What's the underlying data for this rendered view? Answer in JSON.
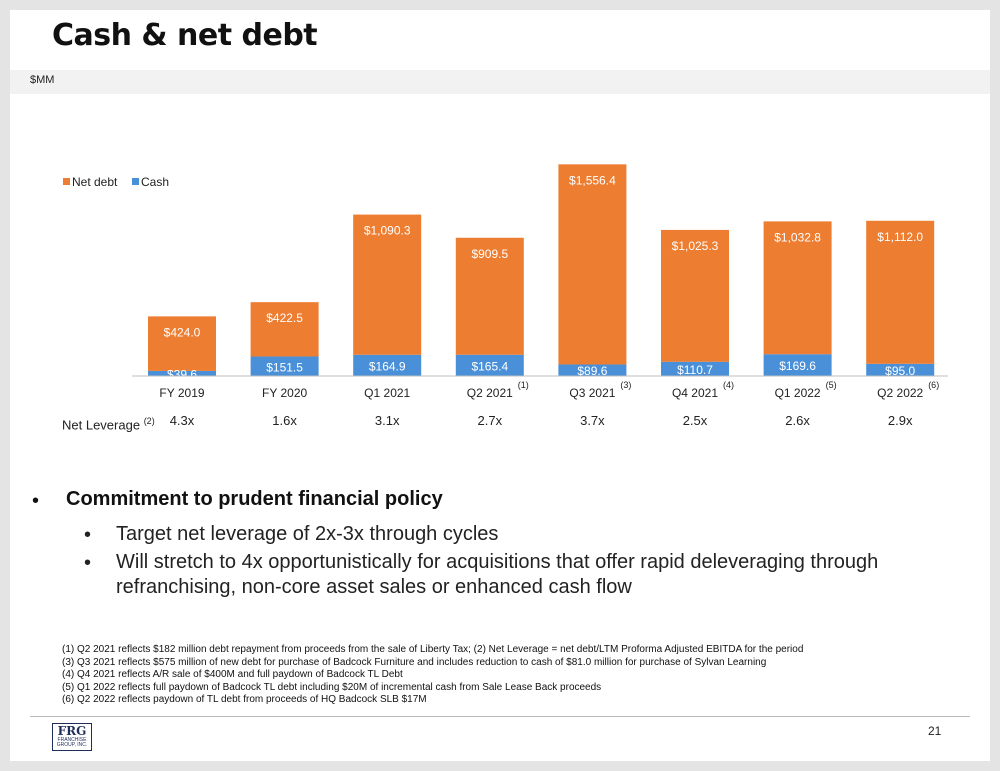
{
  "slide": {
    "title": "Cash & net debt",
    "unit": "$MM",
    "page_number": "21"
  },
  "chart_data": {
    "type": "bar",
    "stacked": true,
    "categories": [
      "FY 2019",
      "FY 2020",
      "Q1 2021",
      "Q2 2021",
      "Q3 2021",
      "Q4 2021",
      "Q1 2022",
      "Q2 2022"
    ],
    "category_notes": [
      "",
      "",
      "",
      "(1)",
      "(3)",
      "(4)",
      "(5)",
      "(6)"
    ],
    "series": [
      {
        "name": "Cash",
        "color": "#4a90d9",
        "values": [
          39.6,
          151.5,
          164.9,
          165.4,
          89.6,
          110.7,
          169.6,
          95.0
        ],
        "labels": [
          "$39.6",
          "$151.5",
          "$164.9",
          "$165.4",
          "$89.6",
          "$110.7",
          "$169.6",
          "$95.0"
        ]
      },
      {
        "name": "Net debt",
        "color": "#ed7d31",
        "values": [
          424.0,
          422.5,
          1090.3,
          909.5,
          1556.4,
          1025.3,
          1032.8,
          1112.0
        ],
        "labels": [
          "$424.0",
          "$422.5",
          "$1,090.3",
          "$909.5",
          "$1,556.4",
          "$1,025.3",
          "$1,032.8",
          "$1,112.0"
        ]
      }
    ],
    "legend": "top-left",
    "ylim": [
      0,
      1700
    ],
    "grid": false
  },
  "net_leverage": {
    "label": "Net Leverage",
    "note": "(2)",
    "values": [
      "4.3x",
      "1.6x",
      "3.1x",
      "2.7x",
      "3.7x",
      "2.5x",
      "2.6x",
      "2.9x"
    ]
  },
  "bullets": {
    "main": "Commitment to prudent financial policy",
    "subs": [
      "Target net leverage of 2x-3x through cycles",
      "Will stretch to 4x opportunistically for acquisitions that offer rapid deleveraging through refranchising, non-core asset sales or enhanced cash flow"
    ]
  },
  "footnotes": [
    "(1) Q2 2021 reflects $182 million debt repayment from proceeds from the sale of Liberty Tax; (2) Net Leverage = net debt/LTM Proforma Adjusted EBITDA for the period",
    "(3) Q3 2021 reflects $575 million of new debt for purchase of Badcock Furniture and includes reduction to cash of $81.0 million for purchase of Sylvan Learning",
    "(4) Q4 2021 reflects A/R sale of $400M and full paydown of Badcock TL Debt",
    "(5) Q1 2022 reflects full paydown of Badcock TL debt including $20M of incremental cash from Sale Lease Back proceeds",
    "(6) Q2 2022 reflects paydown of TL debt from proceeds of HQ Badcock SLB $17M"
  ],
  "logo": {
    "text": "FRG",
    "subtext": "FRANCHISE GROUP, INC."
  }
}
